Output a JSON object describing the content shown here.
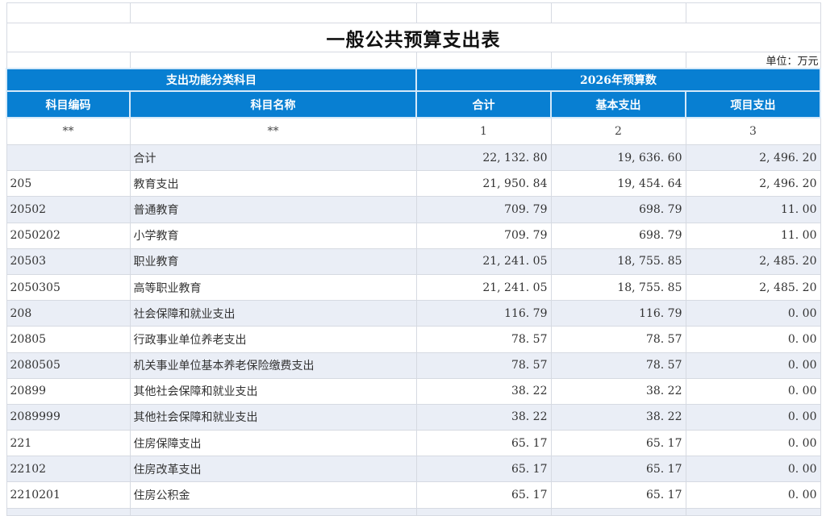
{
  "meta": {
    "title": "一般公共预算支出表",
    "unit_label": "单位：万元"
  },
  "table": {
    "group_headers": {
      "left": "支出功能分类科目",
      "right": "2026年预算数"
    },
    "columns": [
      "科目编码",
      "科目名称",
      "合计",
      "基本支出",
      "项目支出"
    ],
    "mask_row": [
      "**",
      "**",
      "1",
      "2",
      "3"
    ],
    "rows": [
      {
        "code": "",
        "name": "合计",
        "total": "22, 132. 80",
        "basic": "19, 636. 60",
        "project": "2, 496. 20"
      },
      {
        "code": "205",
        "name": "教育支出",
        "total": "21, 950. 84",
        "basic": "19, 454. 64",
        "project": "2, 496. 20"
      },
      {
        "code": "20502",
        "name": "普通教育",
        "total": "709. 79",
        "basic": "698. 79",
        "project": "11. 00"
      },
      {
        "code": "2050202",
        "name": "小学教育",
        "total": "709. 79",
        "basic": "698. 79",
        "project": "11. 00"
      },
      {
        "code": "20503",
        "name": "职业教育",
        "total": "21, 241. 05",
        "basic": "18, 755. 85",
        "project": "2, 485. 20"
      },
      {
        "code": "2050305",
        "name": "高等职业教育",
        "total": "21, 241. 05",
        "basic": "18, 755. 85",
        "project": "2, 485. 20"
      },
      {
        "code": "208",
        "name": "社会保障和就业支出",
        "total": "116. 79",
        "basic": "116. 79",
        "project": "0. 00"
      },
      {
        "code": "20805",
        "name": "行政事业单位养老支出",
        "total": "78. 57",
        "basic": "78. 57",
        "project": "0. 00"
      },
      {
        "code": "2080505",
        "name": "机关事业单位基本养老保险缴费支出",
        "total": "78. 57",
        "basic": "78. 57",
        "project": "0. 00"
      },
      {
        "code": "20899",
        "name": "其他社会保障和就业支出",
        "total": "38. 22",
        "basic": "38. 22",
        "project": "0. 00"
      },
      {
        "code": "2089999",
        "name": "其他社会保障和就业支出",
        "total": "38. 22",
        "basic": "38. 22",
        "project": "0. 00"
      },
      {
        "code": "221",
        "name": "住房保障支出",
        "total": "65. 17",
        "basic": "65. 17",
        "project": "0. 00"
      },
      {
        "code": "22102",
        "name": "住房改革支出",
        "total": "65. 17",
        "basic": "65. 17",
        "project": "0. 00"
      },
      {
        "code": "2210201",
        "name": "住房公积金",
        "total": "65. 17",
        "basic": "65. 17",
        "project": "0. 00"
      }
    ]
  },
  "colors": {
    "header_blue": "#087fd2",
    "header_text": "#ffffff",
    "row_alt": "#eaeef6",
    "grid_border": "#d6dae2"
  }
}
